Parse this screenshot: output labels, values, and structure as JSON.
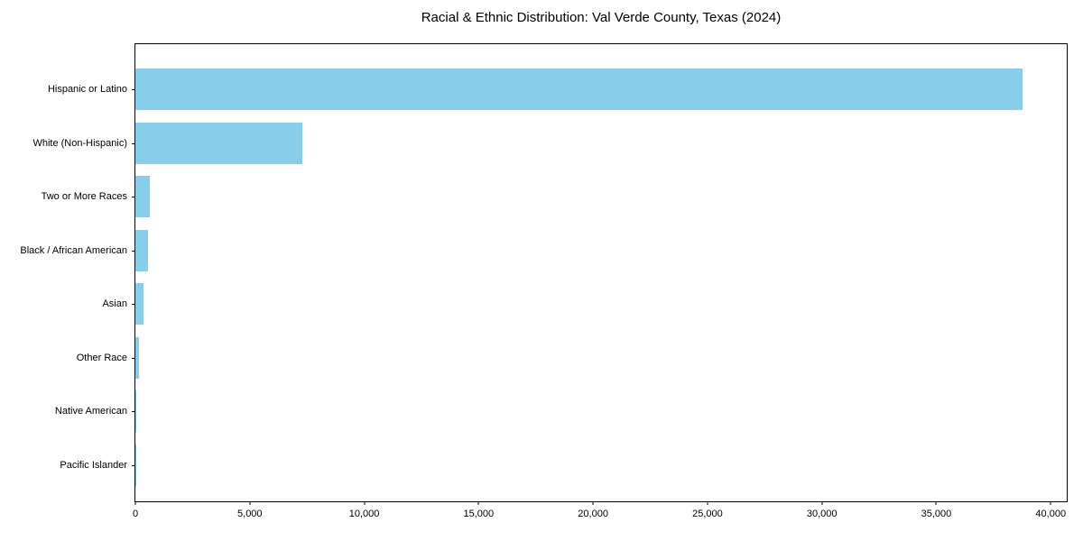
{
  "chart_data": {
    "type": "bar",
    "orientation": "horizontal",
    "title": "Racial & Ethnic Distribution: Val Verde County, Texas (2024)",
    "xlabel": "",
    "ylabel": "",
    "categories": [
      "Hispanic or Latino",
      "White (Non-Hispanic)",
      "Two or More Races",
      "Black / African American",
      "Asian",
      "Other Race",
      "Native American",
      "Pacific Islander"
    ],
    "values": [
      38750,
      7300,
      640,
      540,
      350,
      155,
      20,
      10
    ],
    "xlim": [
      0,
      40700
    ],
    "x_ticks": [
      0,
      5000,
      10000,
      15000,
      20000,
      25000,
      30000,
      35000,
      40000
    ],
    "x_tick_labels": [
      "0",
      "5,000",
      "10,000",
      "15,000",
      "20,000",
      "25,000",
      "30,000",
      "35,000",
      "40,000"
    ],
    "bar_color": "#87CEEB",
    "grid": false,
    "legend": null,
    "value_labels_shown": false
  }
}
